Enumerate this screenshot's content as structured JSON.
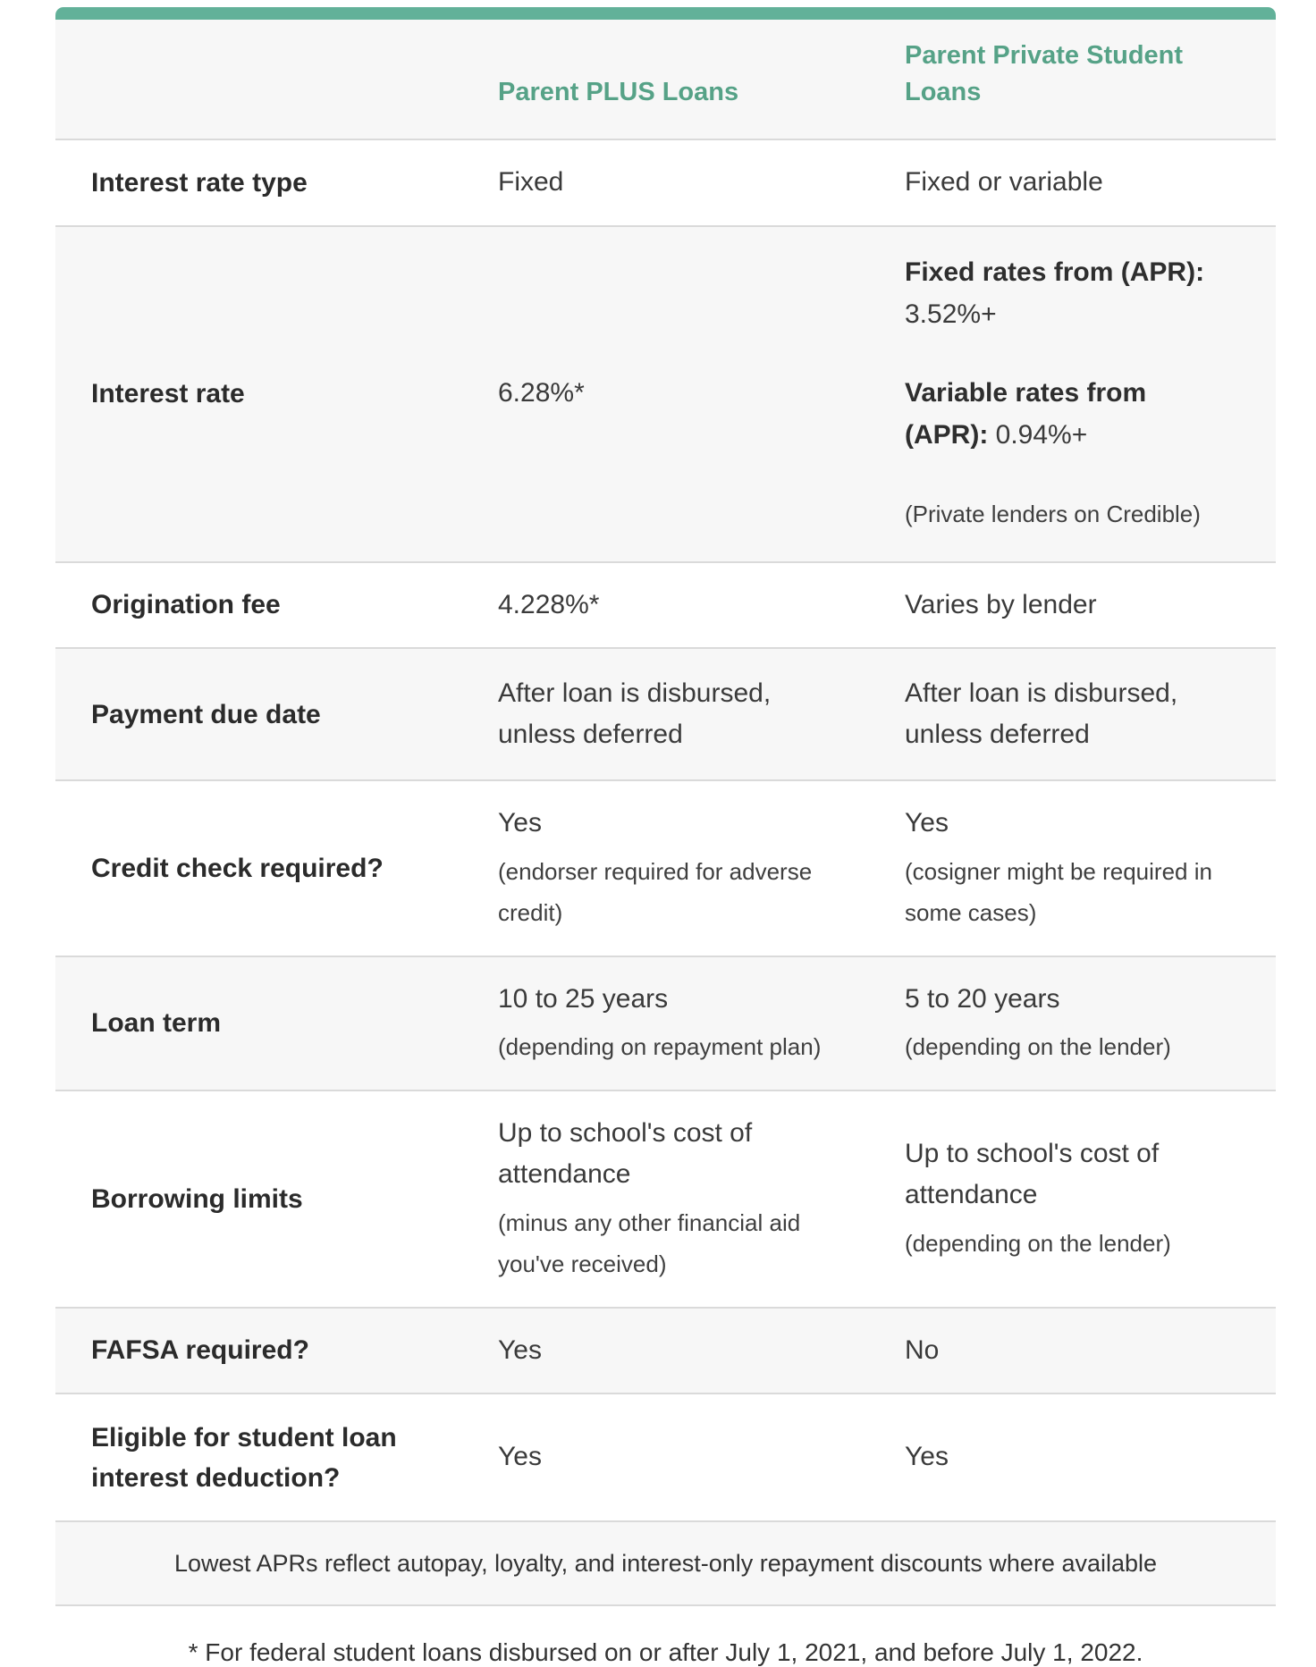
{
  "theme": {
    "accent_bar_green": "#62b199",
    "header_text_green": "#56a287",
    "alt_row_bg": "#f7f7f7",
    "divider": "#dadada",
    "label_color": "#2b2b2b",
    "body_color": "#3a3a3a"
  },
  "table": {
    "header": {
      "col1": "",
      "col2": "Parent PLUS Loans",
      "col3": "Parent Private Student Loans"
    },
    "rows": [
      {
        "label": "Interest rate type",
        "plus": [
          [
            {
              "t": "Fixed"
            }
          ]
        ],
        "private": [
          [
            {
              "t": "Fixed or variable"
            }
          ]
        ]
      },
      {
        "label": "Interest rate",
        "plus": [
          [
            {
              "t": "6.28%*"
            }
          ]
        ],
        "private": [
          [
            {
              "t": "Fixed rates from (APR):",
              "b": true
            },
            {
              "t": " 3.52%+"
            }
          ],
          [
            {
              "t": "Variable rates from (APR):",
              "b": true
            },
            {
              "t": " 0.94%+"
            }
          ],
          [
            {
              "t": "(Private lenders on Credible)",
              "s": true
            }
          ]
        ]
      },
      {
        "label": "Origination fee",
        "plus": [
          [
            {
              "t": "4.228%*"
            }
          ]
        ],
        "private": [
          [
            {
              "t": "Varies by lender"
            }
          ]
        ]
      },
      {
        "label": "Payment due date",
        "plus": [
          [
            {
              "t": "After loan is disbursed, unless deferred"
            }
          ]
        ],
        "private": [
          [
            {
              "t": "After loan is disbursed, unless deferred"
            }
          ]
        ]
      },
      {
        "label": "Credit check required?",
        "plus": [
          [
            {
              "t": "Yes"
            }
          ],
          [
            {
              "t": "(endorser required for adverse credit)",
              "s": true
            }
          ]
        ],
        "private": [
          [
            {
              "t": "Yes"
            }
          ],
          [
            {
              "t": "(cosigner might be required in some cases)",
              "s": true
            }
          ]
        ]
      },
      {
        "label": "Loan term",
        "plus": [
          [
            {
              "t": "10 to 25 years"
            }
          ],
          [
            {
              "t": "(depending on repayment plan)",
              "s": true
            }
          ]
        ],
        "private": [
          [
            {
              "t": "5 to 20 years"
            }
          ],
          [
            {
              "t": "(depending on the lender)",
              "s": true
            }
          ]
        ]
      },
      {
        "label": "Borrowing limits",
        "plus": [
          [
            {
              "t": "Up to school's cost of attendance"
            }
          ],
          [
            {
              "t": "(minus any other financial aid you've received)",
              "s": true
            }
          ]
        ],
        "private": [
          [
            {
              "t": "Up to school's cost of attendance"
            }
          ],
          [
            {
              "t": "(depending on the lender)",
              "s": true
            }
          ]
        ]
      },
      {
        "label": "FAFSA required?",
        "plus": [
          [
            {
              "t": "Yes"
            }
          ]
        ],
        "private": [
          [
            {
              "t": "No"
            }
          ]
        ]
      },
      {
        "label": "Eligible for student loan interest deduction?",
        "plus": [
          [
            {
              "t": "Yes"
            }
          ]
        ],
        "private": [
          [
            {
              "t": "Yes"
            }
          ]
        ]
      }
    ],
    "footer": "Lowest APRs reflect autopay, loyalty, and interest-only repayment discounts where available"
  },
  "footnote": "* For federal student loans disbursed on or after July 1, 2021, and before July 1, 2022."
}
